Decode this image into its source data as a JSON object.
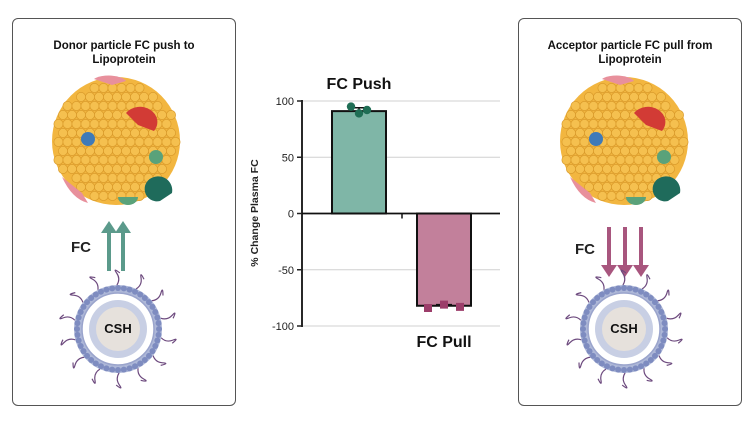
{
  "left_panel": {
    "title_line1": "Donor particle FC push to",
    "title_line2": "Lipoprotein",
    "fc_label": "FC",
    "core_label": "CSH",
    "arrow_direction": "up",
    "arrow_color": "#5b9a8b"
  },
  "right_panel": {
    "title_line1": "Acceptor particle FC pull from",
    "title_line2": "Lipoprotein",
    "fc_label": "FC",
    "core_label": "CSH",
    "arrow_direction": "down",
    "arrow_color": "#a8567e"
  },
  "chart_data": {
    "type": "bar",
    "categories": [
      "FC Push",
      "FC Pull"
    ],
    "values": [
      91,
      -82
    ],
    "errors": [
      3,
      1
    ],
    "points": [
      [
        95,
        89,
        92
      ],
      [
        -84,
        -81,
        -83
      ]
    ],
    "ylabel": "% Change Plasma FC",
    "ylim": [
      -100,
      100
    ],
    "yticks": [
      100,
      50,
      0,
      -50,
      -100
    ],
    "grid": true,
    "colors": {
      "push_fill": "#7fb6a7",
      "push_point": "#1f6e55",
      "pull_fill": "#c2809b",
      "pull_point": "#9c3d6a"
    }
  }
}
